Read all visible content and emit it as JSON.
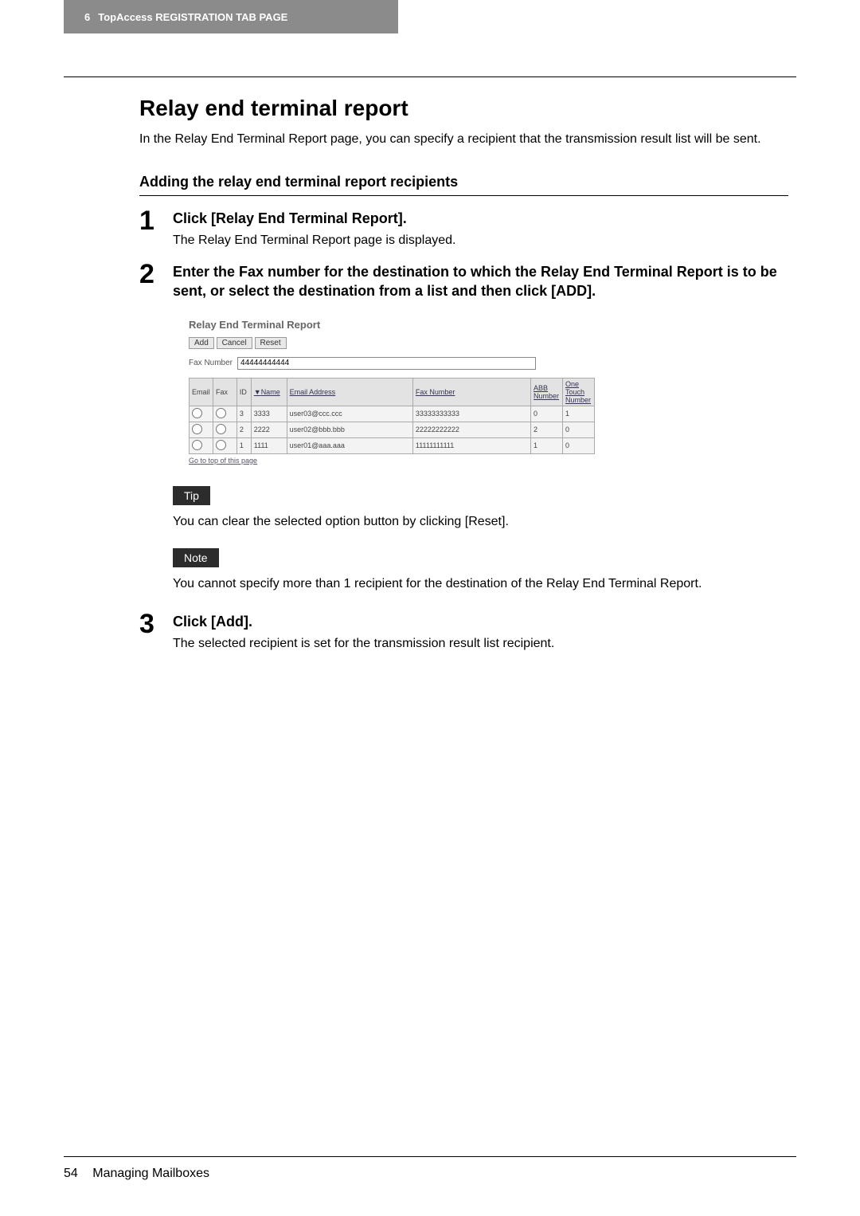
{
  "header": {
    "chapter_number": "6",
    "chapter_title": "TopAccess REGISTRATION TAB PAGE"
  },
  "section": {
    "title": "Relay end terminal report",
    "intro": "In the Relay End Terminal Report page, you can specify a recipient that the transmission result list will be sent.",
    "subsection_title": "Adding the relay end terminal report recipients"
  },
  "steps": {
    "s1": {
      "num": "1",
      "head": "Click [Relay End Terminal Report].",
      "desc": "The Relay End Terminal Report page is displayed."
    },
    "s2": {
      "num": "2",
      "head": "Enter the Fax number for the destination to which the Relay End Terminal Report is to be sent, or select the destination from a list and then click [ADD]."
    },
    "s3": {
      "num": "3",
      "head": "Click [Add].",
      "desc": "The selected recipient is set for the transmission result list recipient."
    }
  },
  "screenshot": {
    "title": "Relay End Terminal Report",
    "buttons": {
      "add": "Add",
      "cancel": "Cancel",
      "reset": "Reset"
    },
    "faxnum_label": "Fax Number",
    "faxnum_value": "44444444444",
    "columns": {
      "email": "Email",
      "fax": "Fax",
      "id": "ID",
      "name": "Name",
      "email_addr": "Email Address",
      "fax_number": "Fax Number",
      "abb": "ABB Number",
      "one_touch": "One Touch Number"
    },
    "rows": [
      {
        "id": "3",
        "name": "3333",
        "email": "user03@ccc.ccc",
        "fax": "33333333333",
        "abb": "0",
        "ot": "1"
      },
      {
        "id": "2",
        "name": "2222",
        "email": "user02@bbb.bbb",
        "fax": "22222222222",
        "abb": "2",
        "ot": "0"
      },
      {
        "id": "1",
        "name": "1111",
        "email": "user01@aaa.aaa",
        "fax": "11111111111",
        "abb": "1",
        "ot": "0"
      }
    ],
    "gotop": "Go to top of this page"
  },
  "tip": {
    "label": "Tip",
    "text": "You can clear the selected option button by clicking [Reset]."
  },
  "note": {
    "label": "Note",
    "text": "You cannot specify more than 1 recipient for the destination of the Relay End Terminal Report."
  },
  "footer": {
    "page_number": "54",
    "running": "Managing Mailboxes"
  }
}
